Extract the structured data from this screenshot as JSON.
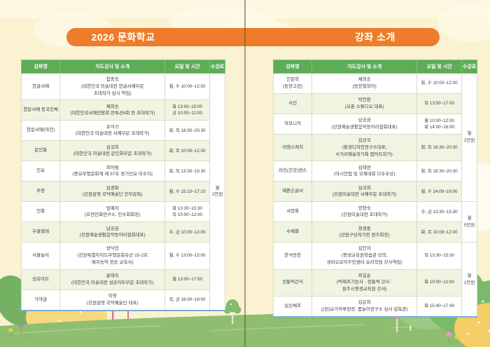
{
  "document_type": "culture-school-brochure-spread",
  "colors": {
    "background_cream": "#FBF2D2",
    "banner_orange": "#EE7C2A",
    "table_header_green": "#5EAC55",
    "row_stripe_green": "#EFF5E1",
    "table_bottom_rule_blue": "#78AED5",
    "grass_green": "#8FBE70"
  },
  "decorations": [
    "clouds",
    "page-fold-line",
    "grass-hill",
    "green-bushes",
    "yellow-mound",
    "pink-trees",
    "small-green-tree",
    "flowers"
  ],
  "pages": [
    {
      "title": "2026 문화학교",
      "table": {
        "headers": [
          "강좌명",
          "지도강사 및 소개",
          "요일 및 시간",
          "수강료"
        ],
        "rows": [
          {
            "name": "한글서예",
            "instructor": "함종욱\n(대한민국 미술대전 한글서예부문\n초대작가 심사 역임)",
            "time": "월, 수 10:00~12:00"
          },
          {
            "name": "한문서예 동국진체",
            "instructor": "채희승\n(대한민국서예전람회 연특선4회 등 초대작가)",
            "time": "화 13:00~15:00\n금 10:00~12:00"
          },
          {
            "name": "한문서예(야간)",
            "instructor": "유석기\n(대한민국 미술대전 서예부문 초대작가)",
            "time": "화, 목 18:30~20:30"
          },
          {
            "name": "문인화",
            "instructor": "심국희\n(대한민국 미술대전 문인화부문 초대작가)",
            "time": "화, 목 10:00~12:00"
          },
          {
            "name": "민요",
            "instructor": "최아림\n(중요무형문화재 제 57호 경기민요 이수자)",
            "time": "화, 목 13:30~15:30"
          },
          {
            "name": "무용",
            "instructor": "김경화\n(강원감영 국악예술단 안무감독)",
            "time": "월, 수 15:10~17:10"
          },
          {
            "name": "민화",
            "instructor": "임예자\n(호연민화연구소, 민수회회장)",
            "time": "화 13:30~15:30\n목 10:00~12:00"
          },
          {
            "name": "우쿨렐레",
            "instructor": "남궁금\n(강원예술생활음악동아리협회대표)",
            "time": "수, 금 10:00~12:00"
          },
          {
            "name": "사물놀이",
            "instructor": "성낙진\n(강원특별자치도무형문화유산 15-2호\n매지농악 전승 교육사)",
            "time": "월, 수 13:00~15:00"
          },
          {
            "name": "섬유아트",
            "instructor": "윤태숙\n(대한민국 미술대전 섬유아트부문 초대작가)",
            "time": "월 13:00~17:00"
          },
          {
            "name": "가야금",
            "instructor": "이영\n(강원감영 국악예술단 대표)",
            "time": "목, 금 16:00~18:00"
          }
        ],
        "fee_groups": [
          {
            "span": 11,
            "label": "월\n2만원"
          }
        ]
      }
    },
    {
      "title": "강좌 소개",
      "table": {
        "headers": [
          "강좌명",
          "지도강사 및 소개",
          "요일 및 시간",
          "수강료"
        ],
        "rows": [
          {
            "name": "인문학\n(동양고전)",
            "instructor": "채희승\n(동양철학자)",
            "time": "화, 수 10:00~12:00"
          },
          {
            "name": "사진",
            "instructor": "박인환\n(오픈 스튜디오 대표)",
            "time": "목 13:00~17:00"
          },
          {
            "name": "하모니카",
            "instructor": "남궁금\n(강원예술생활음악동아리협회대표)",
            "time": "월 10:00~12:00\n화 14:00~16:00"
          },
          {
            "name": "여행스케치",
            "instructor": "김상국\n(환경디자인연구소대표,\nK거리예술작가회 팝아트작가)",
            "time": "화, 목 18:30~20:30"
          },
          {
            "name": "라인(건강)댄스",
            "instructor": "김태연\n(아시안컵 및 국제대회 다수수상)",
            "time": "화, 목 18:30~20:30"
          },
          {
            "name": "예쁜손글씨",
            "instructor": "심국희\n(강원미술대전 서예부문 초대작가)",
            "time": "월, 수 14:00~16:00"
          },
          {
            "name": "서양화",
            "instructor": "양현숙\n(강원미술대전 초대작가)",
            "time": "수, 금 13:30~15:30"
          },
          {
            "name": "수채화",
            "instructor": "정경훈\n(강원구상작가전 원주회장)",
            "time": "화, 목 10:00~12:00"
          },
          {
            "name": "한식반찬",
            "instructor": "김인자\n(평생교육원학습관 강의,\n성바오로이주민센터·요리학원 강사역임)",
            "time": "목 13:30~15:30"
          },
          {
            "name": "전통떡간식",
            "instructor": "최길순\n(떡제조기능사 · 전통떡 강사 ·\n원주시평생교육원 강사)",
            "time": "화 10:00~12:00"
          },
          {
            "name": "심신체조",
            "instructor": "김은희\n((전)요가하루원장, 몸놀이연구소 심사 감독관)",
            "time": "화 15:40~17:40"
          }
        ],
        "fee_groups": [
          {
            "span": 6,
            "label": "월\n2만원"
          },
          {
            "span": 2,
            "label": "월\n5만원"
          },
          {
            "span": 3,
            "label": "월\n1만원"
          }
        ]
      }
    }
  ]
}
